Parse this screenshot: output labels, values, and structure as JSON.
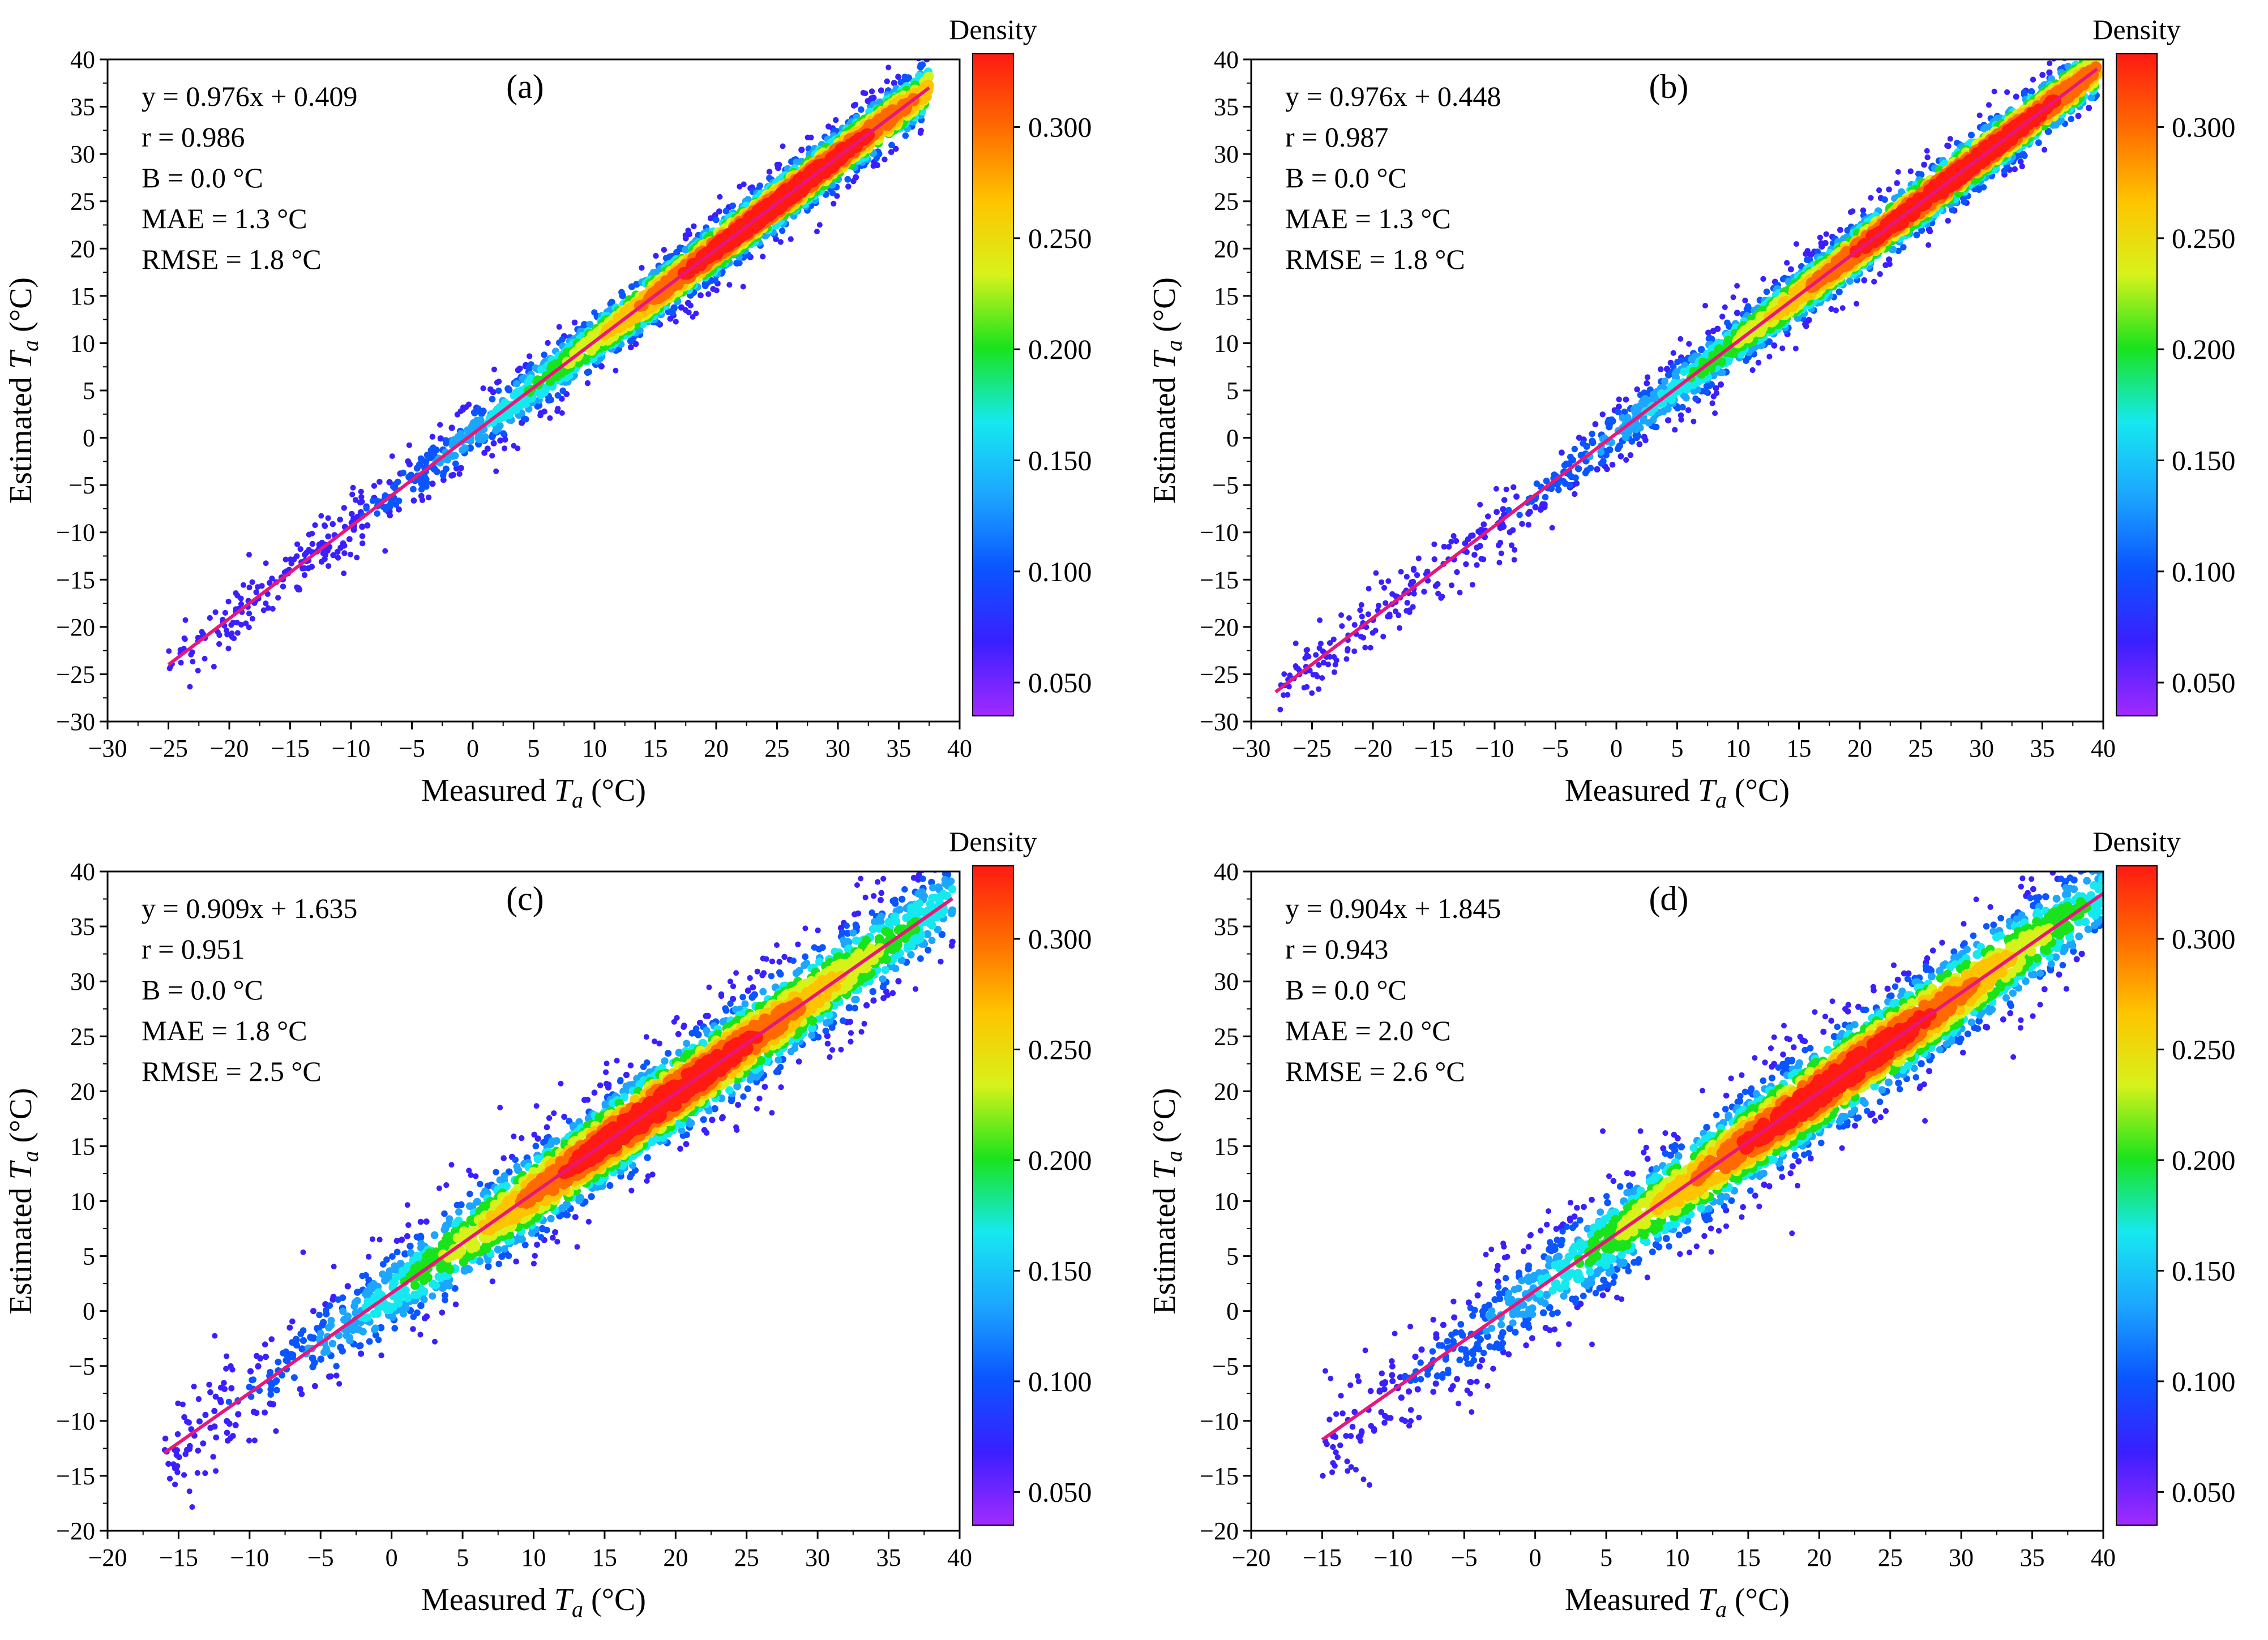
{
  "figure": {
    "colorbar_title": "Density",
    "xlabel_prefix": "Measured ",
    "ylabel_prefix": "Estimated ",
    "var_symbol": "T",
    "var_subscript": "a",
    "unit_suffix": " (°C)",
    "colorbar_ticks": [
      "0.050",
      "0.100",
      "0.150",
      "0.200",
      "0.250",
      "0.300"
    ],
    "colorbar_tick_values": [
      0.05,
      0.1,
      0.15,
      0.2,
      0.25,
      0.3
    ],
    "colorbar_range": [
      0.035,
      0.333
    ],
    "fit_line_color": "#e8177a",
    "colormap": [
      "#a12bff",
      "#3a1fff",
      "#0a55ff",
      "#1ca6ff",
      "#16e8f0",
      "#1ae31c",
      "#d7f21b",
      "#ffc400",
      "#ff6a00",
      "#ff1a12"
    ]
  },
  "chart_data": [
    {
      "type": "scatter",
      "panel": "(a)",
      "equation": "y = 0.976x + 0.409",
      "r": "r = 0.986",
      "bias": "B = 0.0 °C",
      "mae": "MAE = 1.3 °C",
      "rmse": "RMSE = 1.8 °C",
      "slope": 0.976,
      "intercept": 0.409,
      "xlim": [
        -30,
        40
      ],
      "ylim": [
        -30,
        40
      ],
      "xticks": [
        -30,
        -25,
        -20,
        -15,
        -10,
        -5,
        0,
        5,
        10,
        15,
        20,
        25,
        30,
        35,
        40
      ],
      "yticks": [
        -30,
        -25,
        -20,
        -15,
        -10,
        -5,
        0,
        5,
        10,
        15,
        20,
        25,
        30,
        35,
        40
      ],
      "x_range": [
        -25,
        37.5
      ],
      "center": 25,
      "spread": 1.8,
      "xlabel": "Measured Ta (°C)",
      "ylabel": "Estimated Ta (°C)"
    },
    {
      "type": "scatter",
      "panel": "(b)",
      "equation": "y = 0.976x + 0.448",
      "r": "r = 0.987",
      "bias": "B = 0.0 °C",
      "mae": "MAE = 1.3 °C",
      "rmse": "RMSE = 1.8 °C",
      "slope": 0.976,
      "intercept": 0.448,
      "xlim": [
        -30,
        40
      ],
      "ylim": [
        -30,
        40
      ],
      "xticks": [
        -30,
        -25,
        -20,
        -15,
        -10,
        -5,
        0,
        5,
        10,
        15,
        20,
        25,
        30,
        35,
        40
      ],
      "yticks": [
        -30,
        -25,
        -20,
        -15,
        -10,
        -5,
        0,
        5,
        10,
        15,
        20,
        25,
        30,
        35,
        40
      ],
      "x_range": [
        -28,
        39.5
      ],
      "center": 28,
      "spread": 1.8,
      "xlabel": "Measured Ta (°C)",
      "ylabel": "Estimated Ta (°C)"
    },
    {
      "type": "scatter",
      "panel": "(c)",
      "equation": "y = 0.909x + 1.635",
      "r": "r = 0.951",
      "bias": "B = 0.0 °C",
      "mae": "MAE = 1.8 °C",
      "rmse": "RMSE = 2.5 °C",
      "slope": 0.909,
      "intercept": 1.635,
      "xlim": [
        -20,
        40
      ],
      "ylim": [
        -20,
        40
      ],
      "xticks": [
        -20,
        -15,
        -10,
        -5,
        0,
        5,
        10,
        15,
        20,
        25,
        30,
        35,
        40
      ],
      "yticks": [
        -20,
        -15,
        -10,
        -5,
        0,
        5,
        10,
        15,
        20,
        25,
        30,
        35,
        40
      ],
      "x_range": [
        -16,
        39.5
      ],
      "center": 19,
      "spread": 2.5,
      "xlabel": "Measured Ta (°C)",
      "ylabel": "Estimated Ta (°C)"
    },
    {
      "type": "scatter",
      "panel": "(d)",
      "equation": "y = 0.904x + 1.845",
      "r": "r = 0.943",
      "bias": "B = 0.0 °C",
      "mae": "MAE = 2.0 °C",
      "rmse": "RMSE = 2.6 °C",
      "slope": 0.904,
      "intercept": 1.845,
      "xlim": [
        -20,
        40
      ],
      "ylim": [
        -20,
        40
      ],
      "xticks": [
        -20,
        -15,
        -10,
        -5,
        0,
        5,
        10,
        15,
        20,
        25,
        30,
        35,
        40
      ],
      "yticks": [
        -20,
        -15,
        -10,
        -5,
        0,
        5,
        10,
        15,
        20,
        25,
        30,
        35,
        40
      ],
      "x_range": [
        -15,
        40
      ],
      "center": 21,
      "spread": 2.6,
      "xlabel": "Measured Ta (°C)",
      "ylabel": "Estimated Ta (°C)"
    }
  ]
}
